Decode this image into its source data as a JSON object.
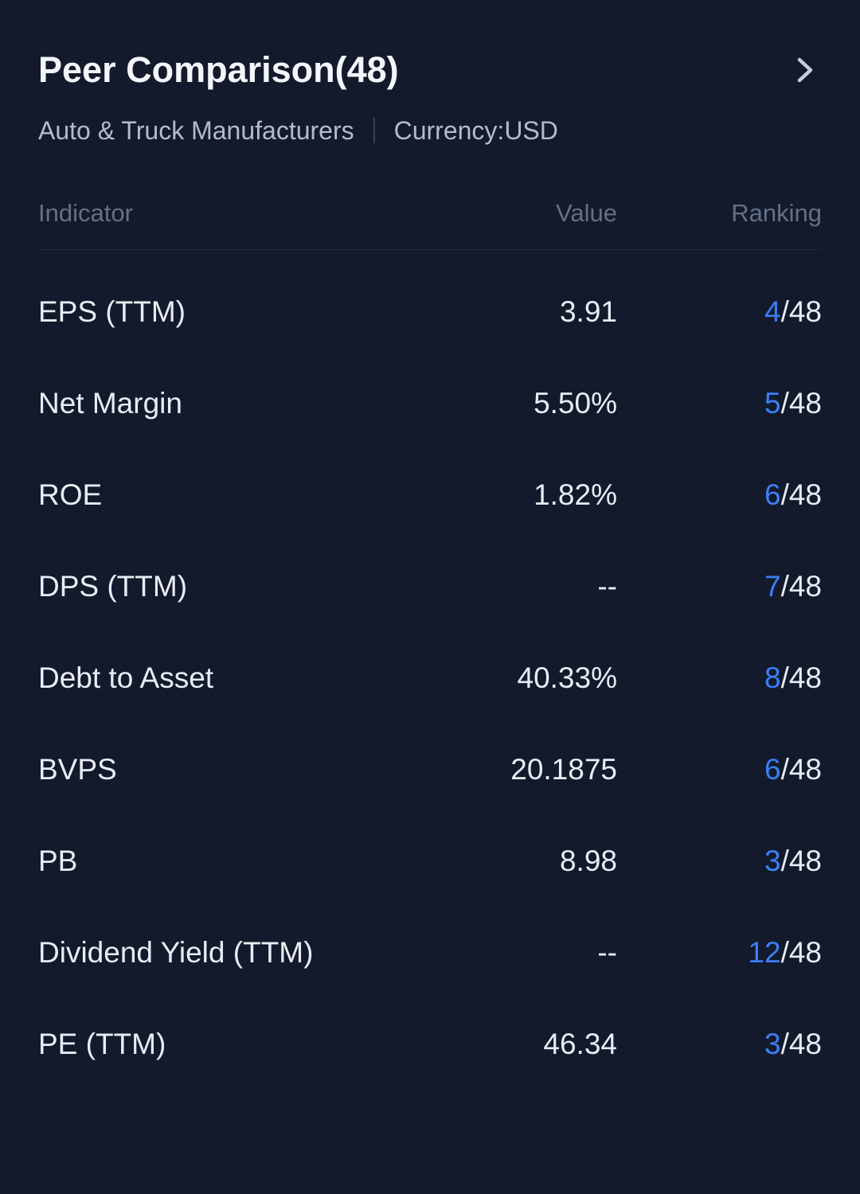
{
  "theme": {
    "background": "#121a2b",
    "accent_blue": "#3d7ef7",
    "text_primary": "#f3f5fa",
    "text_secondary": "#b5bbcd",
    "text_muted": "#657086",
    "divider": "#242c40"
  },
  "header": {
    "title": "Peer Comparison(48)",
    "sector": "Auto & Truck Manufacturers",
    "currency": "Currency:USD",
    "chevron_icon": "chevron-right"
  },
  "table": {
    "columns": [
      "Indicator",
      "Value",
      "Ranking"
    ],
    "rows": [
      {
        "indicator": "EPS (TTM)",
        "value": "3.91",
        "rank": "4",
        "total": "/48"
      },
      {
        "indicator": "Net Margin",
        "value": "5.50%",
        "rank": "5",
        "total": "/48"
      },
      {
        "indicator": "ROE",
        "value": "1.82%",
        "rank": "6",
        "total": "/48"
      },
      {
        "indicator": "DPS (TTM)",
        "value": "--",
        "rank": "7",
        "total": "/48"
      },
      {
        "indicator": "Debt to Asset",
        "value": "40.33%",
        "rank": "8",
        "total": "/48"
      },
      {
        "indicator": "BVPS",
        "value": "20.1875",
        "rank": "6",
        "total": "/48"
      },
      {
        "indicator": "PB",
        "value": "8.98",
        "rank": "3",
        "total": "/48"
      },
      {
        "indicator": "Dividend Yield (TTM)",
        "value": "--",
        "rank": "12",
        "total": "/48"
      },
      {
        "indicator": "PE (TTM)",
        "value": "46.34",
        "rank": "3",
        "total": "/48"
      }
    ]
  }
}
